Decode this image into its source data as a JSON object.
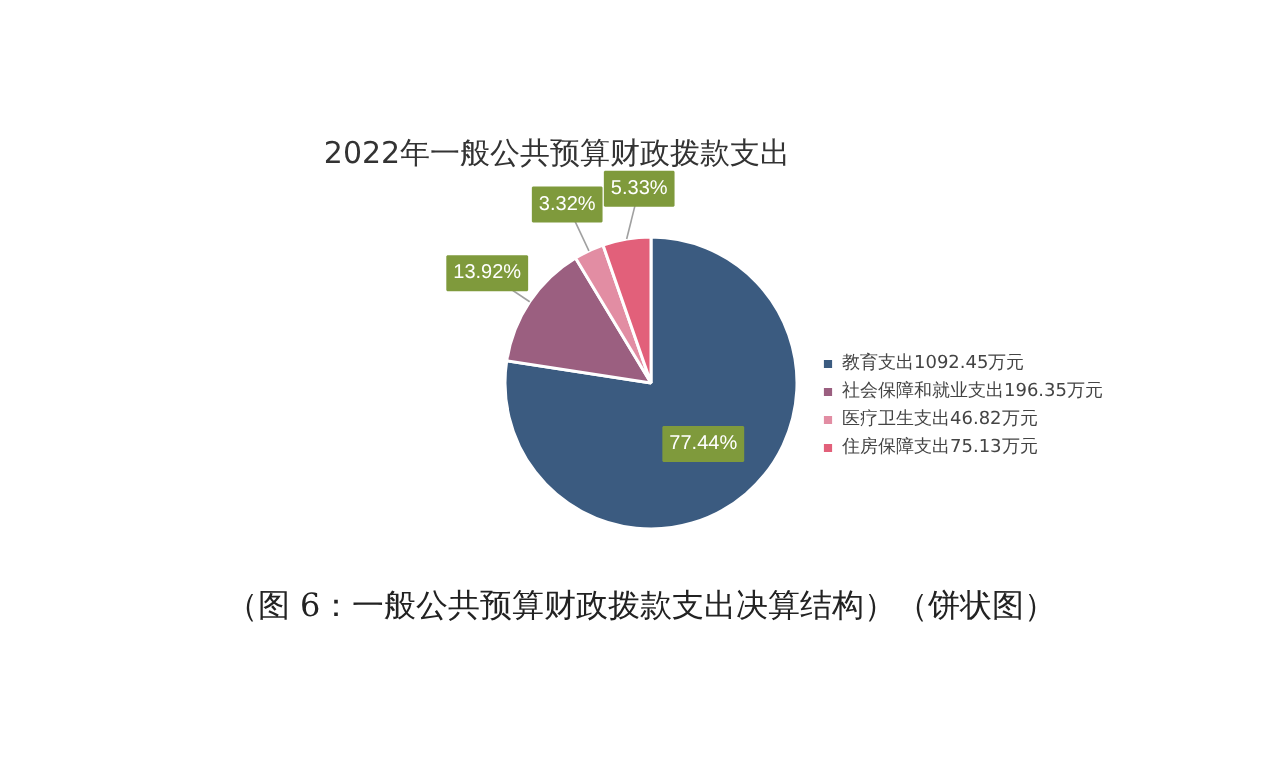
{
  "chart_data": {
    "type": "pie",
    "title": "2022年一般公共预算财政拨款支出",
    "categories": [
      "教育支出1092.45万元",
      "社会保障和就业支出196.35万元",
      "医疗卫生支出46.82万元",
      "住房保障支出75.13万元"
    ],
    "values": [
      77.44,
      13.92,
      3.32,
      5.33
    ],
    "colors": [
      "#3b5b80",
      "#9b5f80",
      "#e28da3",
      "#e2607a"
    ],
    "value_labels": [
      "77.44%",
      "13.92%",
      "3.32%",
      "5.33%"
    ],
    "legend": "right",
    "annotations": [
      "（图 6：一般公共预算财政拨款支出决算结构）（饼状图）"
    ]
  }
}
